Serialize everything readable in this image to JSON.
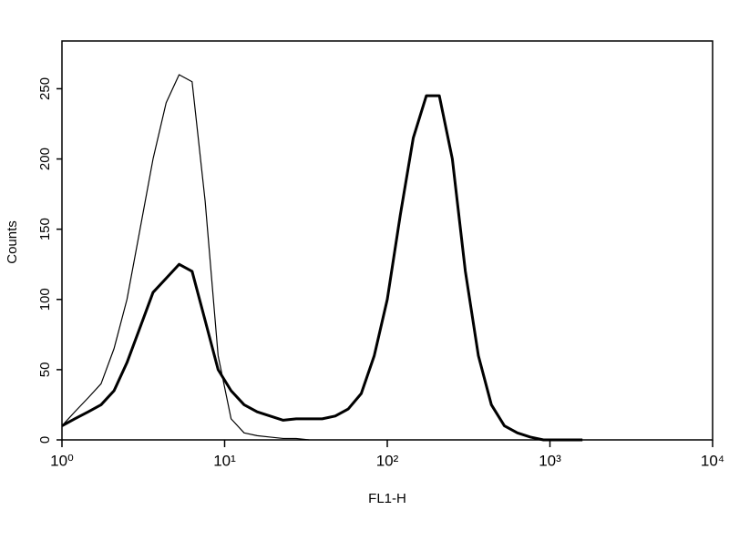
{
  "chart_data": {
    "type": "line",
    "xscale": "log",
    "xlabel": "FL1-H",
    "ylabel": "Counts",
    "x": [
      1,
      1.2,
      1.45,
      1.74,
      2.09,
      2.51,
      3.02,
      3.63,
      4.37,
      5.25,
      6.31,
      7.59,
      9.12,
      10.96,
      13.18,
      15.85,
      19.05,
      22.91,
      27.54,
      33.11,
      39.81,
      47.86,
      57.54,
      69.18,
      83.18,
      100,
      120.2,
      144.5,
      173.8,
      208.9,
      251.2,
      302,
      363.1,
      436.5,
      524.8,
      631,
      758.6,
      912,
      1096,
      1318,
      1585
    ],
    "series": [
      {
        "color": "#000000",
        "values": [
          10,
          20,
          30,
          40,
          65,
          100,
          150,
          200,
          240,
          260,
          255,
          170,
          60,
          15,
          5,
          3,
          2,
          1,
          1,
          0,
          null,
          null,
          null,
          null,
          null,
          null,
          null,
          null,
          null,
          null,
          null,
          null,
          null,
          null,
          null,
          null,
          null,
          null,
          null,
          null,
          null
        ]
      },
      {
        "color": "#000000",
        "values": [
          10,
          15,
          20,
          25,
          35,
          55,
          80,
          105,
          115,
          125,
          120,
          85,
          50,
          35,
          25,
          20,
          17,
          14,
          15,
          15,
          15,
          17,
          22,
          33,
          60,
          100,
          160,
          215,
          245,
          245,
          200,
          120,
          60,
          25,
          10,
          5,
          2,
          0,
          0,
          0,
          0
        ]
      }
    ],
    "xlim": [
      1,
      10000
    ],
    "xticks": [
      {
        "value": 1,
        "label": "10⁰"
      },
      {
        "value": 10,
        "label": "10¹"
      },
      {
        "value": 100,
        "label": "10²"
      },
      {
        "value": 1000,
        "label": "10³"
      },
      {
        "value": 10000,
        "label": "10⁴"
      }
    ],
    "ylim": [
      0,
      284
    ],
    "yticks": [
      0,
      50,
      100,
      150,
      200,
      250
    ]
  }
}
